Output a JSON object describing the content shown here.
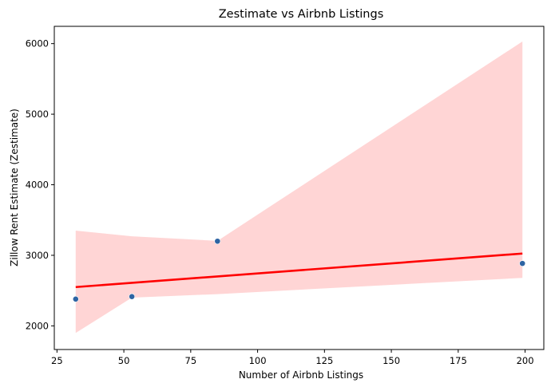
{
  "chart_data": {
    "type": "scatter",
    "title": "Zestimate vs Airbnb Listings",
    "xlabel": "Number of Airbnb Listings",
    "ylabel": "Zillow Rent Estimate (Zestimate)",
    "xlim": [
      24,
      207
    ],
    "ylim": [
      1665,
      6245
    ],
    "xticks": [
      25,
      50,
      75,
      100,
      125,
      150,
      175,
      200
    ],
    "yticks": [
      2000,
      3000,
      4000,
      5000,
      6000
    ],
    "grid": false,
    "points": [
      {
        "x": 32,
        "y": 2380
      },
      {
        "x": 53,
        "y": 2415
      },
      {
        "x": 85,
        "y": 3200
      },
      {
        "x": 199,
        "y": 2885
      }
    ],
    "regression": {
      "x": [
        32,
        199
      ],
      "y": [
        2550,
        3025
      ]
    },
    "confidence_band": {
      "x": [
        32,
        53,
        85,
        199
      ],
      "upper": [
        3350,
        3270,
        3205,
        6030
      ],
      "lower": [
        1900,
        2400,
        2450,
        2680
      ]
    },
    "colors": {
      "points": "#2e64a3",
      "regression": "#ff0000",
      "band": "#ffd5d5"
    }
  }
}
